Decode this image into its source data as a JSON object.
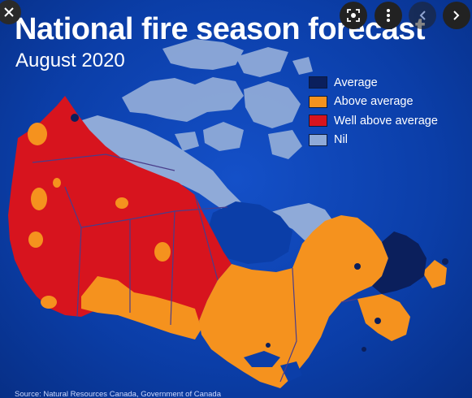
{
  "map": {
    "title": "National fire season forecast",
    "subtitle": "August 2020",
    "source": "Source: Natural Resources Canada, Government of Canada",
    "legend": [
      {
        "label": "Average",
        "color": "#0b1f5c"
      },
      {
        "label": "Above average",
        "color": "#f5921e"
      },
      {
        "label": "Well above average",
        "color": "#d7141e"
      },
      {
        "label": "Nil",
        "color": "#8faad8"
      }
    ],
    "colors": {
      "ocean": "#0b3ea8",
      "land_nil": "#8faad8",
      "border": "#4a3d8a"
    }
  },
  "viewer": {
    "icons": [
      "close-icon",
      "lens-icon",
      "more-vertical-icon",
      "chevron-left-icon",
      "chevron-right-icon"
    ]
  }
}
